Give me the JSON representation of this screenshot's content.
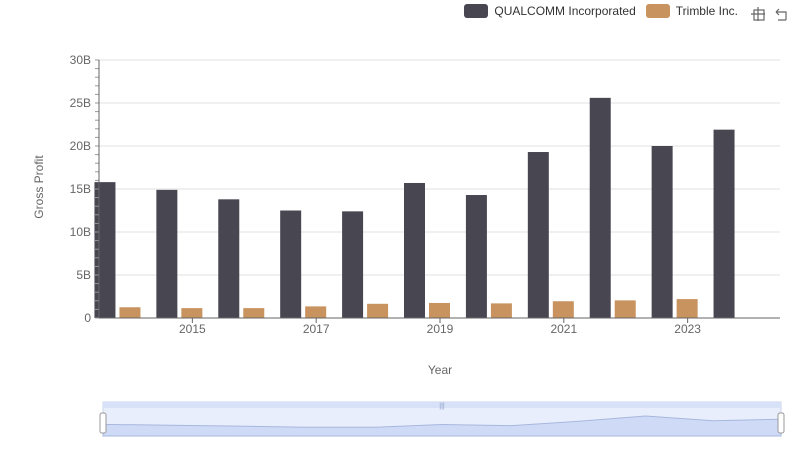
{
  "chart_data": {
    "type": "bar",
    "xlabel": "Year",
    "ylabel": "Gross Profit",
    "ylim": [
      0,
      30000000000
    ],
    "yticks": [
      0,
      5000000000,
      10000000000,
      15000000000,
      20000000000,
      25000000000,
      30000000000
    ],
    "ytick_labels": [
      "0",
      "5B",
      "10B",
      "15B",
      "20B",
      "25B",
      "30B"
    ],
    "x_ticks_shown": [
      "2015",
      "2017",
      "2019",
      "2021",
      "2023"
    ],
    "categories": [
      "2014",
      "2015",
      "2016",
      "2017",
      "2018",
      "2019",
      "2020",
      "2021",
      "2022",
      "2023",
      "2024"
    ],
    "series": [
      {
        "name": "QUALCOMM Incorporated",
        "color": "#484751",
        "values": [
          15800000000,
          14900000000,
          13800000000,
          12500000000,
          12400000000,
          15700000000,
          14300000000,
          19300000000,
          25600000000,
          20000000000,
          21900000000
        ]
      },
      {
        "name": "Trimble Inc.",
        "color": "#c8935f",
        "values": [
          1250000000,
          1150000000,
          1150000000,
          1350000000,
          1650000000,
          1750000000,
          1700000000,
          1950000000,
          2050000000,
          2200000000,
          null
        ]
      }
    ],
    "legend_position": "top-right",
    "grid": true
  },
  "ui": {
    "legend_items": [
      "QUALCOMM Incorporated",
      "Trimble Inc."
    ],
    "toolbox": [
      "zoom-icon",
      "restore-icon"
    ],
    "datazoom": {
      "range_start": 0,
      "range_end": 100
    }
  }
}
